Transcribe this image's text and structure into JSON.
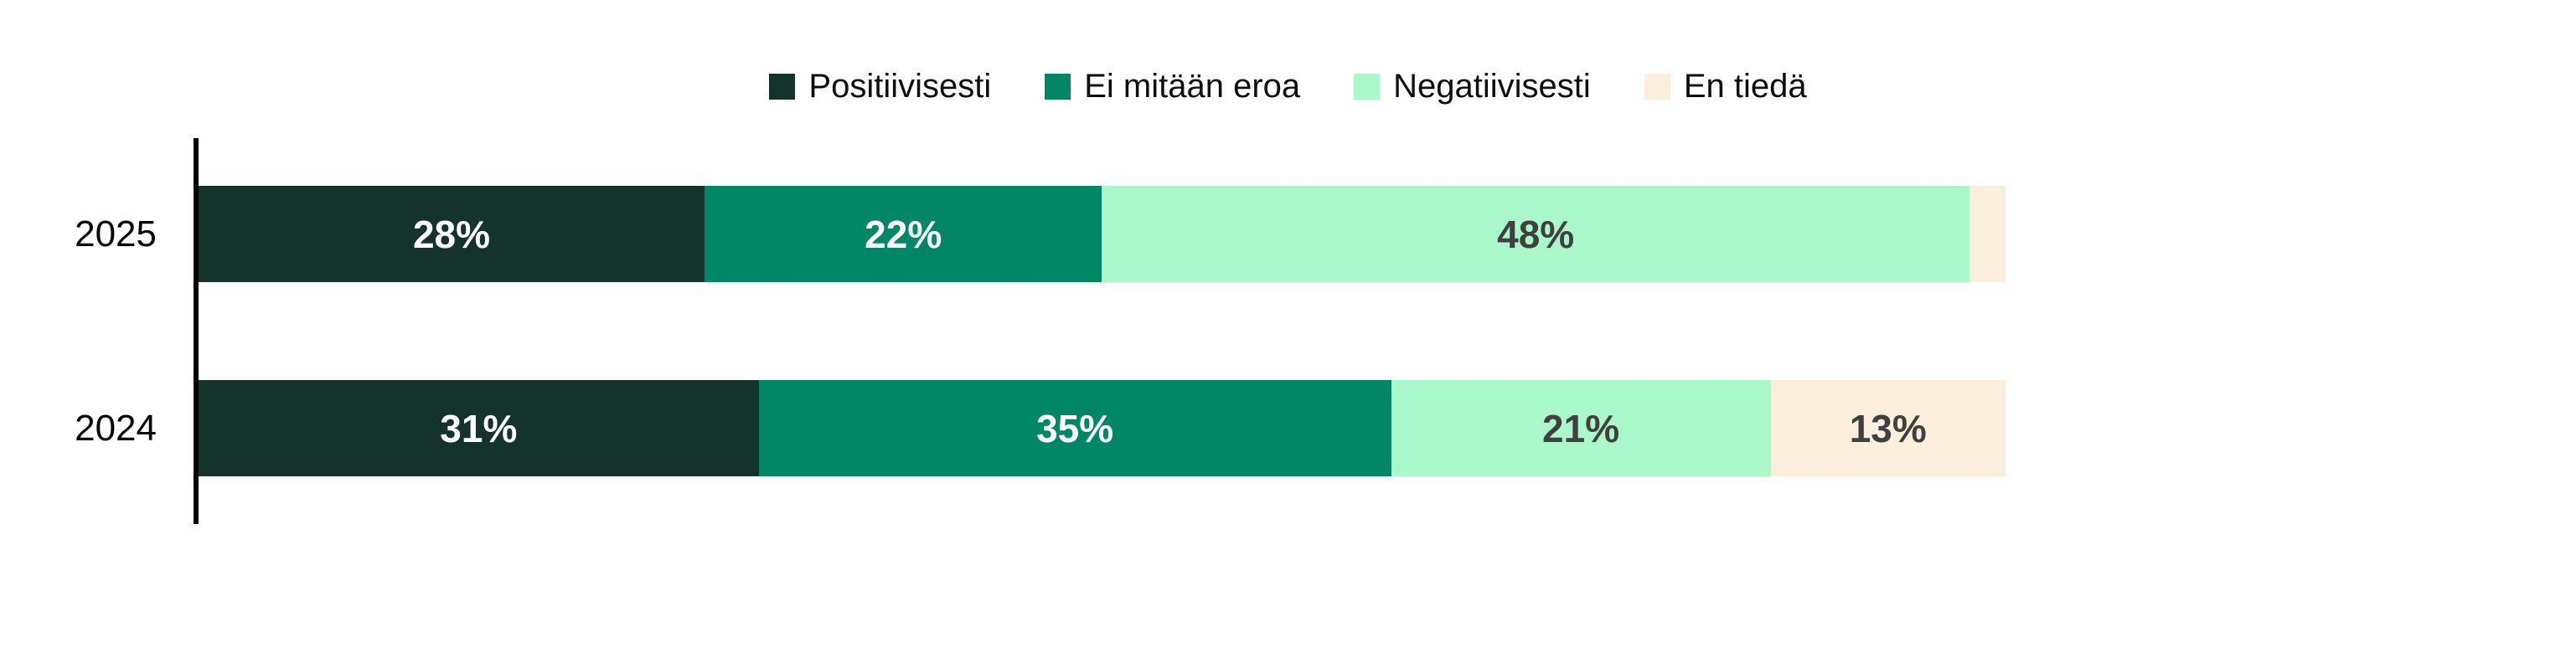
{
  "chart_data": {
    "type": "bar",
    "orientation": "horizontal-stacked",
    "title": "",
    "xlabel": "",
    "ylabel": "",
    "xlim": [
      0,
      100
    ],
    "grid": false,
    "legend_position": "top-center",
    "categories": [
      "2025",
      "2024"
    ],
    "series": [
      {
        "name": "Positiivisesti",
        "color": "#14332B",
        "label_color": "#FFFFFF",
        "values": [
          28,
          31
        ]
      },
      {
        "name": "Ei mitään eroa",
        "color": "#018765",
        "label_color": "#FFFFFF",
        "values": [
          22,
          35
        ]
      },
      {
        "name": "Negatiivisesti",
        "color": "#AAF7CA",
        "label_color": "#404040",
        "values": [
          48,
          21
        ]
      },
      {
        "name": "En tiedä",
        "color": "#FAEFDB",
        "label_color": "#404040",
        "values": [
          2,
          13
        ]
      }
    ],
    "data_labels": [
      [
        "28%",
        "22%",
        "48%",
        ""
      ],
      [
        "31%",
        "35%",
        "21%",
        "13%"
      ]
    ],
    "axis_color": "#000000",
    "category_label_color": "#000000",
    "legend_text_color": "#0D0D0D",
    "background_color": "#FFFFFF"
  }
}
